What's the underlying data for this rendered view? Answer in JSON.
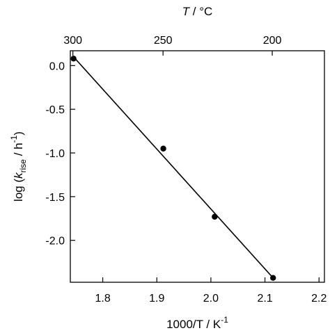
{
  "chart_data": {
    "type": "scatter",
    "xlabel": {
      "prefix": "1000/T / K",
      "sup": "-1"
    },
    "ylabel": {
      "prefix": "log (",
      "italic": "k",
      "sub": "rise",
      "mid": " / h",
      "sup": "-1",
      "suffix": ")"
    },
    "x2label": {
      "italic": "T",
      "rest": " / °C"
    },
    "xlim": [
      1.74,
      2.21
    ],
    "ylim": [
      -2.48,
      0.17
    ],
    "xticks": [
      {
        "value": 1.8,
        "label": "1.8"
      },
      {
        "value": 1.9,
        "label": "1.9"
      },
      {
        "value": 2.0,
        "label": "2.0"
      },
      {
        "value": 2.1,
        "label": "2.1"
      },
      {
        "value": 2.2,
        "label": "2.2"
      }
    ],
    "yticks": [
      {
        "value": 0.0,
        "label": "0.0"
      },
      {
        "value": -0.5,
        "label": "-0.5"
      },
      {
        "value": -1.0,
        "label": "-1.0"
      },
      {
        "value": -1.5,
        "label": "-1.5"
      },
      {
        "value": -2.0,
        "label": "-2.0"
      }
    ],
    "x2ticks": [
      {
        "celsius": 300,
        "label": "300"
      },
      {
        "celsius": 250,
        "label": "250"
      },
      {
        "celsius": 200,
        "label": "200"
      }
    ],
    "points": [
      {
        "x": 1.746,
        "y": 0.08
      },
      {
        "x": 1.912,
        "y": -0.95
      },
      {
        "x": 2.007,
        "y": -1.73
      },
      {
        "x": 2.115,
        "y": -2.43
      }
    ],
    "fit_line": {
      "x": [
        1.746,
        2.115
      ],
      "y": [
        0.1,
        -2.43
      ]
    },
    "grid": false
  }
}
